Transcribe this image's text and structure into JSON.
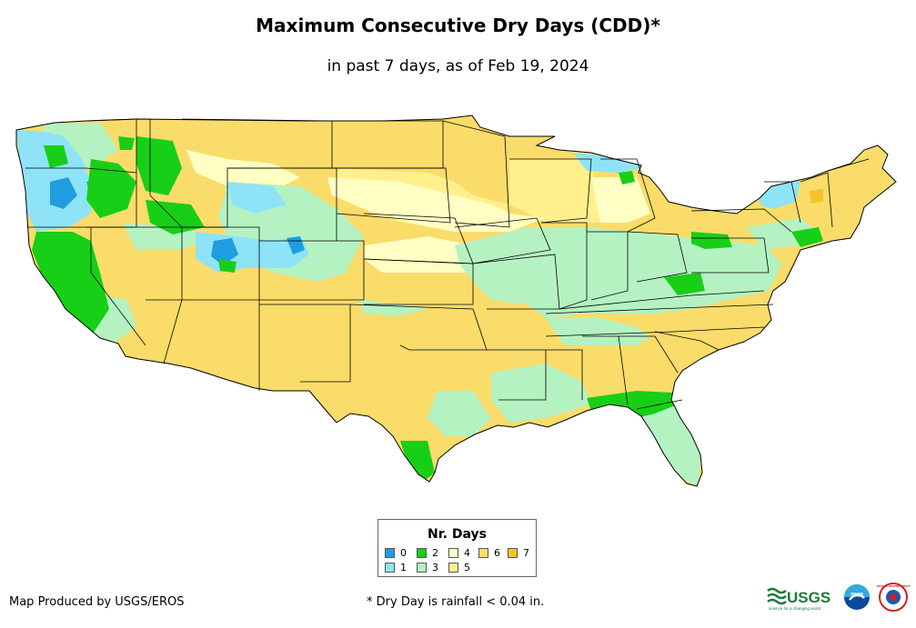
{
  "header": {
    "title": "Maximum Consecutive Dry Days (CDD)*",
    "subtitle": "in past 7 days, as of Feb 19, 2024"
  },
  "legend": {
    "title": "Nr. Days",
    "items": [
      {
        "label": "0",
        "color": "#1f9de0"
      },
      {
        "label": "1",
        "color": "#8ee3f7"
      },
      {
        "label": "2",
        "color": "#17cf17"
      },
      {
        "label": "3",
        "color": "#b5f2c2"
      },
      {
        "label": "4",
        "color": "#ffffc4"
      },
      {
        "label": "5",
        "color": "#fff08c"
      },
      {
        "label": "6",
        "color": "#fadc6a"
      },
      {
        "label": "7",
        "color": "#f5c22d"
      }
    ]
  },
  "footer": {
    "credit": "Map Produced by USGS/EROS",
    "footnote": "* Dry Day is rainfall < 0.04 in."
  },
  "logos": {
    "usgs": "USGS",
    "usgs_tagline": "science for a changing world",
    "noaa": "noaa",
    "nws": "NATIONAL WEATHER SERVICE"
  }
}
